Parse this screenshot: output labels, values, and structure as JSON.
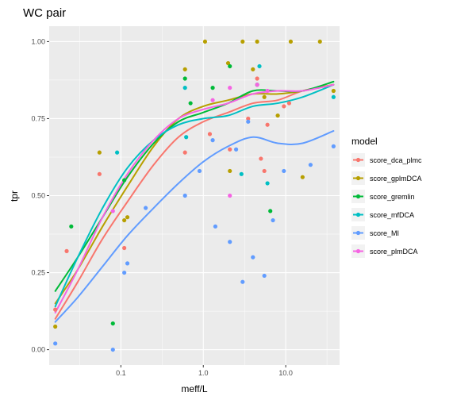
{
  "chart_data": {
    "type": "scatter",
    "title": "WC pair",
    "xlabel": "meff/L",
    "ylabel": "tpr",
    "x_scale": "log10",
    "xlim": [
      0.0135,
      45
    ],
    "ylim": [
      -0.05,
      1.05
    ],
    "x_ticks": [
      0.1,
      1.0,
      10.0
    ],
    "x_tick_labels": [
      "0.1",
      "1.0",
      "10.0"
    ],
    "y_ticks": [
      0,
      0.25,
      0.5,
      0.75,
      1.0
    ],
    "y_tick_labels": [
      "0.00",
      "0.25",
      "0.50",
      "0.75",
      "1.00"
    ],
    "grid": true,
    "panel_background": "#ebebeb",
    "legend": {
      "title": "model",
      "position": "right"
    },
    "series": [
      {
        "name": "score_dca_plmc",
        "color": "#F8766D",
        "points": [
          [
            0.016,
            0.13
          ],
          [
            0.022,
            0.32
          ],
          [
            0.055,
            0.57
          ],
          [
            0.11,
            0.33
          ],
          [
            0.6,
            0.64
          ],
          [
            1.2,
            0.7
          ],
          [
            2.1,
            0.65
          ],
          [
            3.5,
            0.75
          ],
          [
            4.5,
            0.88
          ],
          [
            5.0,
            0.62
          ],
          [
            5.5,
            0.58
          ],
          [
            6.0,
            0.73
          ],
          [
            9.5,
            0.79
          ],
          [
            11.0,
            0.8
          ]
        ],
        "smooth": [
          [
            0.016,
            0.1
          ],
          [
            0.03,
            0.22
          ],
          [
            0.06,
            0.36
          ],
          [
            0.12,
            0.48
          ],
          [
            0.25,
            0.6
          ],
          [
            0.5,
            0.69
          ],
          [
            1.0,
            0.74
          ],
          [
            2.0,
            0.77
          ],
          [
            4.0,
            0.8
          ],
          [
            8.0,
            0.81
          ],
          [
            16.0,
            0.84
          ],
          [
            38.0,
            0.86
          ]
        ]
      },
      {
        "name": "score_gplmDCA",
        "color": "#B79F00",
        "points": [
          [
            0.016,
            0.075
          ],
          [
            0.055,
            0.64
          ],
          [
            0.11,
            0.42
          ],
          [
            0.12,
            0.43
          ],
          [
            0.6,
            0.91
          ],
          [
            1.05,
            1.0
          ],
          [
            2.0,
            0.93
          ],
          [
            2.1,
            0.58
          ],
          [
            3.0,
            1.0
          ],
          [
            4.5,
            1.0
          ],
          [
            5.5,
            0.82
          ],
          [
            8.0,
            0.76
          ],
          [
            11.5,
            1.0
          ],
          [
            16.0,
            0.56
          ],
          [
            26.0,
            1.0
          ],
          [
            38.0,
            0.84
          ],
          [
            4.0,
            0.91
          ]
        ],
        "smooth": [
          [
            0.016,
            0.15
          ],
          [
            0.03,
            0.26
          ],
          [
            0.06,
            0.4
          ],
          [
            0.12,
            0.53
          ],
          [
            0.25,
            0.66
          ],
          [
            0.5,
            0.75
          ],
          [
            1.0,
            0.79
          ],
          [
            2.0,
            0.81
          ],
          [
            4.0,
            0.83
          ],
          [
            8.0,
            0.83
          ],
          [
            16.0,
            0.84
          ],
          [
            38.0,
            0.86
          ]
        ]
      },
      {
        "name": "score_gremlin",
        "color": "#00BA38",
        "points": [
          [
            0.025,
            0.4
          ],
          [
            0.08,
            0.085
          ],
          [
            0.11,
            0.55
          ],
          [
            0.6,
            0.88
          ],
          [
            0.7,
            0.8
          ],
          [
            1.3,
            0.85
          ],
          [
            2.1,
            0.92
          ],
          [
            4.5,
            0.86
          ],
          [
            6.5,
            0.45
          ]
        ],
        "smooth": [
          [
            0.016,
            0.19
          ],
          [
            0.03,
            0.3
          ],
          [
            0.06,
            0.43
          ],
          [
            0.12,
            0.56
          ],
          [
            0.25,
            0.67
          ],
          [
            0.5,
            0.74
          ],
          [
            1.0,
            0.77
          ],
          [
            2.0,
            0.8
          ],
          [
            4.0,
            0.84
          ],
          [
            8.0,
            0.84
          ],
          [
            16.0,
            0.84
          ],
          [
            38.0,
            0.87
          ]
        ]
      },
      {
        "name": "score_mfDCA",
        "color": "#00BFC4",
        "points": [
          [
            0.09,
            0.64
          ],
          [
            0.6,
            0.85
          ],
          [
            0.62,
            0.69
          ],
          [
            2.9,
            0.57
          ],
          [
            4.8,
            0.92
          ],
          [
            6.0,
            0.54
          ],
          [
            38.0,
            0.82
          ]
        ],
        "smooth": [
          [
            0.016,
            0.14
          ],
          [
            0.03,
            0.3
          ],
          [
            0.06,
            0.46
          ],
          [
            0.12,
            0.59
          ],
          [
            0.25,
            0.68
          ],
          [
            0.5,
            0.73
          ],
          [
            1.0,
            0.75
          ],
          [
            2.0,
            0.76
          ],
          [
            4.0,
            0.79
          ],
          [
            8.0,
            0.8
          ],
          [
            16.0,
            0.82
          ],
          [
            38.0,
            0.86
          ]
        ]
      },
      {
        "name": "score_MI",
        "color": "#619CFF",
        "points": [
          [
            0.016,
            0.02
          ],
          [
            0.08,
            0.0
          ],
          [
            0.11,
            0.25
          ],
          [
            0.12,
            0.28
          ],
          [
            0.2,
            0.46
          ],
          [
            0.6,
            0.5
          ],
          [
            0.9,
            0.58
          ],
          [
            1.3,
            0.68
          ],
          [
            1.4,
            0.4
          ],
          [
            2.1,
            0.35
          ],
          [
            3.0,
            0.22
          ],
          [
            4.0,
            0.3
          ],
          [
            5.5,
            0.24
          ],
          [
            7.0,
            0.42
          ],
          [
            9.5,
            0.58
          ],
          [
            20.0,
            0.6
          ],
          [
            38.0,
            0.66
          ],
          [
            2.5,
            0.65
          ],
          [
            3.5,
            0.74
          ]
        ],
        "smooth": [
          [
            0.016,
            0.09
          ],
          [
            0.03,
            0.17
          ],
          [
            0.06,
            0.27
          ],
          [
            0.12,
            0.37
          ],
          [
            0.25,
            0.46
          ],
          [
            0.5,
            0.54
          ],
          [
            1.0,
            0.61
          ],
          [
            2.0,
            0.66
          ],
          [
            4.0,
            0.69
          ],
          [
            8.0,
            0.67
          ],
          [
            16.0,
            0.67
          ],
          [
            38.0,
            0.71
          ]
        ]
      },
      {
        "name": "score_plmDCA",
        "color": "#F564E3",
        "points": [
          [
            0.08,
            0.45
          ],
          [
            1.3,
            0.81
          ],
          [
            2.1,
            0.85
          ],
          [
            2.1,
            0.5
          ],
          [
            4.5,
            0.86
          ],
          [
            6.0,
            0.84
          ]
        ],
        "smooth": [
          [
            0.016,
            0.12
          ],
          [
            0.03,
            0.26
          ],
          [
            0.06,
            0.43
          ],
          [
            0.12,
            0.57
          ],
          [
            0.25,
            0.68
          ],
          [
            0.5,
            0.75
          ],
          [
            1.0,
            0.78
          ],
          [
            2.0,
            0.8
          ],
          [
            4.0,
            0.83
          ],
          [
            8.0,
            0.84
          ],
          [
            16.0,
            0.84
          ],
          [
            38.0,
            0.86
          ]
        ]
      }
    ]
  }
}
